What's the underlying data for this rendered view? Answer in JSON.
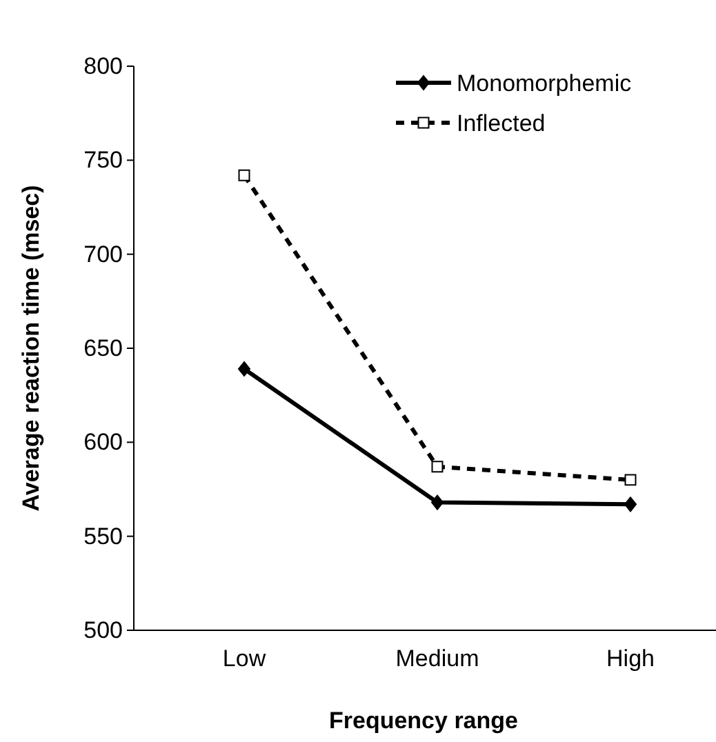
{
  "chart_data": {
    "type": "line",
    "xlabel": "Frequency range",
    "ylabel": "Average reaction time (msec)",
    "categories": [
      "Low",
      "Medium",
      "High"
    ],
    "series": [
      {
        "name": "Monomorphemic",
        "color": "#000000",
        "values": [
          639,
          568,
          567
        ],
        "marker": "diamond",
        "line_style": "solid"
      },
      {
        "name": "Inflected",
        "color": "#000000",
        "values": [
          742,
          587,
          580
        ],
        "marker": "square",
        "line_style": "dashed"
      }
    ],
    "ylim": [
      500,
      800
    ],
    "yticks": [
      500,
      550,
      600,
      650,
      700,
      750,
      800
    ],
    "grid": false,
    "legend": "top right"
  }
}
